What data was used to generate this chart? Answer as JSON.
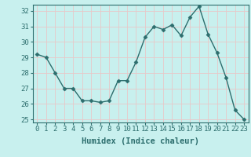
{
  "x": [
    0,
    1,
    2,
    3,
    4,
    5,
    6,
    7,
    8,
    9,
    10,
    11,
    12,
    13,
    14,
    15,
    16,
    17,
    18,
    19,
    20,
    21,
    22,
    23
  ],
  "y": [
    29.2,
    29.0,
    28.0,
    27.0,
    27.0,
    26.2,
    26.2,
    26.1,
    26.2,
    27.5,
    27.5,
    28.7,
    30.3,
    31.0,
    30.8,
    31.1,
    30.4,
    31.6,
    32.3,
    30.5,
    29.3,
    27.7,
    25.6,
    25.0
  ],
  "xlabel": "Humidex (Indice chaleur)",
  "ylim": [
    24.8,
    32.4
  ],
  "xlim": [
    -0.5,
    23.5
  ],
  "yticks": [
    25,
    26,
    27,
    28,
    29,
    30,
    31,
    32
  ],
  "xticks": [
    0,
    1,
    2,
    3,
    4,
    5,
    6,
    7,
    8,
    9,
    10,
    11,
    12,
    13,
    14,
    15,
    16,
    17,
    18,
    19,
    20,
    21,
    22,
    23
  ],
  "line_color": "#2d6e6e",
  "marker": "D",
  "bg_color": "#c8f0ee",
  "grid_color": "#e8c8c8",
  "border_color": "#2d6e6e",
  "tick_label_color": "#2d6e6e",
  "xlabel_color": "#2d6e6e",
  "xlabel_fontsize": 7.5,
  "tick_fontsize": 6.5,
  "marker_size": 2.5,
  "line_width": 1.0
}
